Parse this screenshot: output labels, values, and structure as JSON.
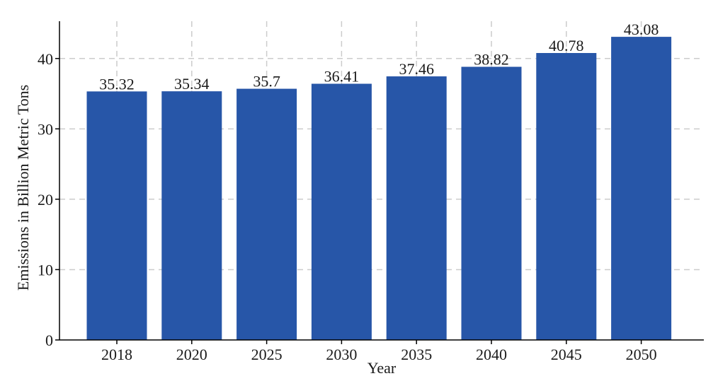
{
  "chart_data": {
    "type": "bar",
    "categories": [
      "2018",
      "2020",
      "2025",
      "2030",
      "2035",
      "2040",
      "2045",
      "2050"
    ],
    "values": [
      35.32,
      35.34,
      35.7,
      36.41,
      37.46,
      38.82,
      40.78,
      43.08
    ],
    "data_labels": [
      "35.32",
      "35.34",
      "35.7",
      "36.41",
      "37.46",
      "38.82",
      "40.78",
      "43.08"
    ],
    "title": "",
    "xlabel": "Year",
    "ylabel": "Emissions in Billion Metric Tons",
    "ylim": [
      0,
      45.3
    ],
    "yticks": [
      0,
      10,
      20,
      30,
      40
    ],
    "grid": true,
    "bar_color": "#2756a8",
    "grid_color": "#cccccc"
  }
}
